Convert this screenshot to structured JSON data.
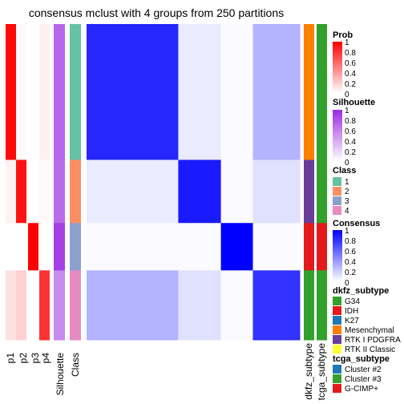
{
  "title": "consensus mclust with 4 groups from 250 partitions",
  "colors": {
    "prob_low": "#ffffff",
    "prob_high": "#ff0000",
    "silhouette_low": "#ffffff",
    "silhouette_high": "#9a2be2",
    "consensus_low": "#ffffff",
    "consensus_high": "#0000ff"
  },
  "columns": {
    "p1": "p1",
    "p2": "p2",
    "p3": "p3",
    "p4": "p4",
    "silhouette": "Silhouette",
    "class": "Class",
    "dkfz": "dkfz_subtype",
    "tcga": "tcga_subtype"
  },
  "legends": {
    "prob": {
      "title": "Prob",
      "ticks": [
        "1",
        "0.8",
        "0.6",
        "0.4",
        "0.2",
        "0"
      ]
    },
    "silhouette": {
      "title": "Silhouette",
      "ticks": [
        "1",
        "0.8",
        "0.6",
        "0.4",
        "0.2",
        "0"
      ]
    },
    "class": {
      "title": "Class",
      "items": [
        {
          "label": "1",
          "color": "#66c2a5"
        },
        {
          "label": "2",
          "color": "#fc8d62"
        },
        {
          "label": "3",
          "color": "#8da0cb"
        },
        {
          "label": "4",
          "color": "#e78ac3"
        }
      ]
    },
    "consensus": {
      "title": "Consensus",
      "ticks": [
        "1",
        "0.8",
        "0.6",
        "0.4",
        "0.2",
        "0"
      ]
    },
    "dkfz": {
      "title": "dkfz_subtype",
      "items": [
        {
          "label": "G34",
          "color": "#33a02c"
        },
        {
          "label": "IDH",
          "color": "#e31a1c"
        },
        {
          "label": "K27",
          "color": "#1f78b4"
        },
        {
          "label": "Mesenchymal",
          "color": "#ff7f00"
        },
        {
          "label": "RTK I PDGFRA",
          "color": "#6a3d9a"
        },
        {
          "label": "RTK II Classic",
          "color": "#ffff33"
        }
      ]
    },
    "tcga": {
      "title": "tcga_subtype",
      "items": [
        {
          "label": "Cluster #2",
          "color": "#1f78b4"
        },
        {
          "label": "Cluster #3",
          "color": "#33a02c"
        },
        {
          "label": "G-CIMP+",
          "color": "#e31a1c"
        }
      ]
    }
  },
  "chart_data": {
    "type": "heatmap",
    "title": "consensus mclust with 4 groups from 250 partitions",
    "sample_groups": [
      {
        "class": "1",
        "fraction": 0.43,
        "silhouette": 0.72,
        "probs": [
          0.97,
          0.02,
          0.0,
          0.06
        ]
      },
      {
        "class": "2",
        "fraction": 0.2,
        "silhouette": 0.7,
        "probs": [
          0.05,
          0.93,
          0.0,
          0.02
        ]
      },
      {
        "class": "3",
        "fraction": 0.15,
        "silhouette": 0.9,
        "probs": [
          0.0,
          0.0,
          1.0,
          0.0
        ]
      },
      {
        "class": "4",
        "fraction": 0.22,
        "silhouette": 0.55,
        "probs": [
          0.12,
          0.18,
          0.0,
          0.8
        ]
      }
    ],
    "consensus_blocks": [
      [
        0.85,
        0.08,
        0.02,
        0.3
      ],
      [
        0.08,
        0.9,
        0.02,
        0.12
      ],
      [
        0.02,
        0.02,
        1.0,
        0.02
      ],
      [
        0.3,
        0.12,
        0.02,
        0.8
      ]
    ]
  }
}
